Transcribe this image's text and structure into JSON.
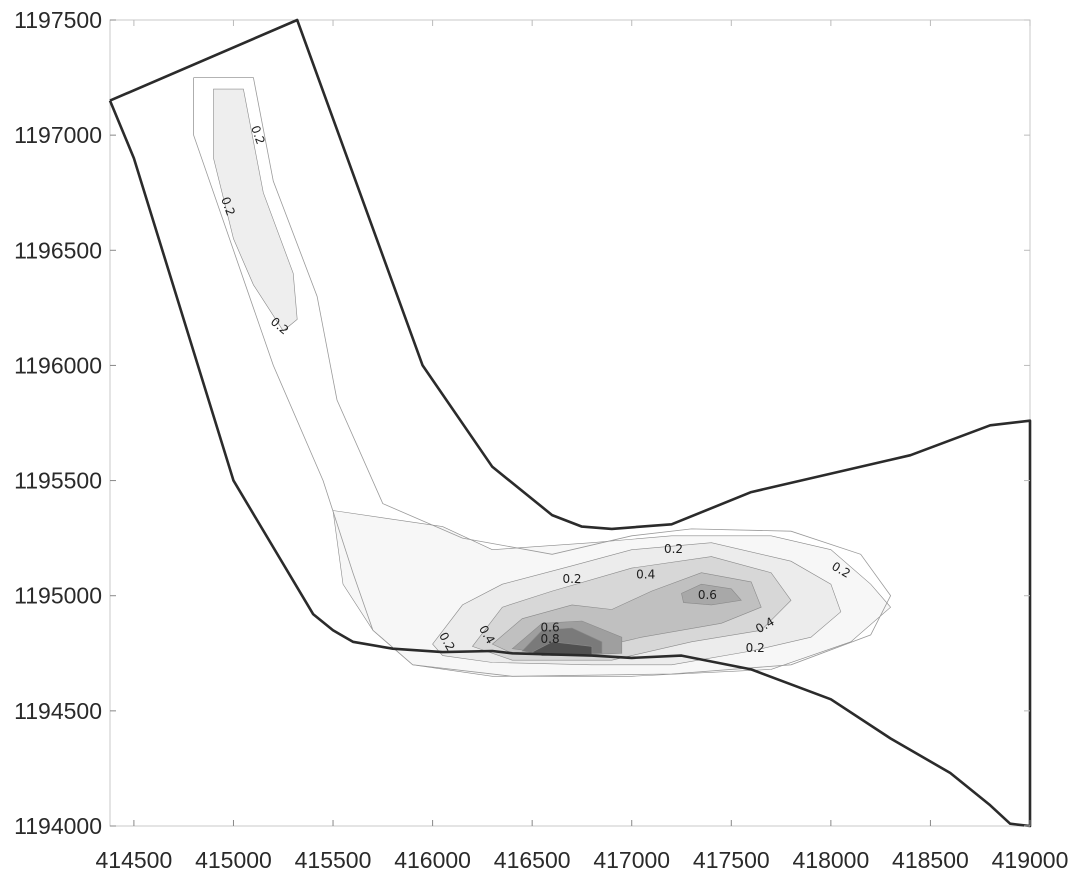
{
  "chart_data": {
    "type": "contour",
    "title": "",
    "xlabel": "",
    "ylabel": "",
    "xlim": [
      414380,
      419000
    ],
    "ylim": [
      1194000,
      1197500
    ],
    "x_ticks": [
      414500,
      415000,
      415500,
      416000,
      416500,
      417000,
      417500,
      418000,
      418500,
      419000
    ],
    "y_ticks": [
      1194000,
      1194500,
      1195000,
      1195500,
      1196000,
      1196500,
      1197000,
      1197500
    ],
    "x_tick_labels": [
      "414500",
      "415000",
      "415500",
      "416000",
      "416500",
      "417000",
      "417500",
      "418000",
      "418500",
      "419000"
    ],
    "y_tick_labels": [
      "1194000",
      "1194500",
      "1195000",
      "1195500",
      "1196000",
      "1196500",
      "1197000",
      "1197500"
    ],
    "grid": false,
    "boundary": [
      [
        414380,
        1197150
      ],
      [
        415320,
        1197500
      ],
      [
        415950,
        1196000
      ],
      [
        416300,
        1195560
      ],
      [
        416600,
        1195350
      ],
      [
        416750,
        1195300
      ],
      [
        416900,
        1195290
      ],
      [
        417200,
        1195310
      ],
      [
        417600,
        1195450
      ],
      [
        418400,
        1195610
      ],
      [
        418800,
        1195740
      ],
      [
        419000,
        1195760
      ],
      [
        419000,
        1194000
      ],
      [
        418900,
        1194010
      ],
      [
        418800,
        1194090
      ],
      [
        418600,
        1194230
      ],
      [
        418300,
        1194380
      ],
      [
        418000,
        1194550
      ],
      [
        417600,
        1194680
      ],
      [
        417250,
        1194740
      ],
      [
        417000,
        1194730
      ],
      [
        416800,
        1194740
      ],
      [
        416400,
        1194750
      ],
      [
        416300,
        1194760
      ],
      [
        416050,
        1194755
      ],
      [
        415800,
        1194770
      ],
      [
        415600,
        1194800
      ],
      [
        415500,
        1194850
      ],
      [
        415400,
        1194920
      ],
      [
        415000,
        1195500
      ],
      [
        414500,
        1196900
      ],
      [
        414380,
        1197150
      ]
    ],
    "contour_levels": [
      0.2,
      0.4,
      0.6,
      0.8
    ],
    "shading": "grayscale, darker = higher value",
    "contours": [
      {
        "level": 0,
        "shade": "#f7f7f7",
        "points": [
          [
            415500,
            1195370
          ],
          [
            416050,
            1195300
          ],
          [
            416300,
            1195200
          ],
          [
            416800,
            1195230
          ],
          [
            417200,
            1195260
          ],
          [
            417700,
            1195260
          ],
          [
            418000,
            1195200
          ],
          [
            418200,
            1195050
          ],
          [
            418300,
            1194950
          ],
          [
            418100,
            1194800
          ],
          [
            417700,
            1194680
          ],
          [
            417000,
            1194650
          ],
          [
            416300,
            1194650
          ],
          [
            415900,
            1194700
          ],
          [
            415700,
            1194850
          ],
          [
            415550,
            1195050
          ]
        ]
      },
      {
        "level": 0.2,
        "shade": "#ececec",
        "points": [
          [
            416000,
            1194790
          ],
          [
            416150,
            1194960
          ],
          [
            416350,
            1195050
          ],
          [
            416700,
            1195130
          ],
          [
            417000,
            1195200
          ],
          [
            417400,
            1195230
          ],
          [
            417800,
            1195150
          ],
          [
            418000,
            1195050
          ],
          [
            418050,
            1194930
          ],
          [
            417900,
            1194820
          ],
          [
            417600,
            1194760
          ],
          [
            417200,
            1194700
          ],
          [
            416800,
            1194700
          ],
          [
            416300,
            1194710
          ],
          [
            416050,
            1194740
          ]
        ]
      },
      {
        "level": 0.3,
        "shade": "#d7d7d7",
        "points": [
          [
            416200,
            1194780
          ],
          [
            416350,
            1194950
          ],
          [
            416600,
            1195020
          ],
          [
            417000,
            1195120
          ],
          [
            417400,
            1195170
          ],
          [
            417700,
            1195100
          ],
          [
            417800,
            1194980
          ],
          [
            417650,
            1194850
          ],
          [
            417300,
            1194800
          ],
          [
            416900,
            1194720
          ],
          [
            416400,
            1194720
          ]
        ]
      },
      {
        "level": 0.4,
        "shade": "#c0c0c0",
        "points": [
          [
            416300,
            1194790
          ],
          [
            416450,
            1194900
          ],
          [
            416700,
            1194960
          ],
          [
            416900,
            1194940
          ],
          [
            417100,
            1195020
          ],
          [
            417350,
            1195100
          ],
          [
            417600,
            1195060
          ],
          [
            417650,
            1194950
          ],
          [
            417450,
            1194880
          ],
          [
            417050,
            1194820
          ],
          [
            416700,
            1194750
          ],
          [
            416400,
            1194750
          ]
        ]
      },
      {
        "level": 0.5,
        "shade": "#9f9f9f",
        "points": [
          [
            416400,
            1194770
          ],
          [
            416550,
            1194880
          ],
          [
            416750,
            1194890
          ],
          [
            416950,
            1194820
          ],
          [
            416950,
            1194750
          ],
          [
            416650,
            1194740
          ]
        ]
      },
      {
        "level": 0.5,
        "shade": "#a8a8a8",
        "points": [
          [
            417250,
            1195010
          ],
          [
            417350,
            1195050
          ],
          [
            417500,
            1195030
          ],
          [
            417550,
            1194980
          ],
          [
            417400,
            1194960
          ],
          [
            417260,
            1194970
          ]
        ]
      },
      {
        "level": 0.6,
        "shade": "#7a7a7a",
        "points": [
          [
            416450,
            1194760
          ],
          [
            416550,
            1194850
          ],
          [
            416700,
            1194860
          ],
          [
            416850,
            1194800
          ],
          [
            416850,
            1194750
          ],
          [
            416600,
            1194740
          ]
        ]
      },
      {
        "level": 0.8,
        "shade": "#505050",
        "points": [
          [
            416500,
            1194755
          ],
          [
            416600,
            1194800
          ],
          [
            416800,
            1194780
          ],
          [
            416800,
            1194745
          ],
          [
            416550,
            1194740
          ]
        ]
      },
      {
        "level": 0.2,
        "shade": "#eeeeee",
        "points": [
          [
            414900,
            1197200
          ],
          [
            415050,
            1197200
          ],
          [
            415150,
            1196750
          ],
          [
            415300,
            1196400
          ],
          [
            415320,
            1196200
          ],
          [
            415250,
            1196150
          ],
          [
            415100,
            1196350
          ],
          [
            415000,
            1196550
          ],
          [
            414900,
            1196900
          ]
        ]
      }
    ],
    "contour_lines": [
      [
        [
          414800,
          1197250
        ],
        [
          415100,
          1197250
        ],
        [
          415200,
          1196800
        ],
        [
          415420,
          1196300
        ],
        [
          415520,
          1195850
        ],
        [
          415750,
          1195400
        ],
        [
          416150,
          1195250
        ],
        [
          416600,
          1195180
        ],
        [
          417000,
          1195260
        ],
        [
          417300,
          1195290
        ],
        [
          417800,
          1195280
        ],
        [
          418150,
          1195180
        ],
        [
          418300,
          1195000
        ],
        [
          418200,
          1194830
        ],
        [
          417800,
          1194700
        ],
        [
          417200,
          1194660
        ],
        [
          416400,
          1194650
        ],
        [
          415900,
          1194700
        ],
        [
          415700,
          1194850
        ],
        [
          415600,
          1195100
        ],
        [
          415450,
          1195500
        ],
        [
          415200,
          1196000
        ],
        [
          415000,
          1196500
        ],
        [
          414800,
          1197000
        ],
        [
          414800,
          1197250
        ]
      ]
    ],
    "contour_labels": [
      {
        "text": "0.2",
        "x": 415120,
        "y": 1197000,
        "angle": 70
      },
      {
        "text": "0.2",
        "x": 414970,
        "y": 1196690,
        "angle": 70
      },
      {
        "text": "0.2",
        "x": 415230,
        "y": 1196170,
        "angle": 40
      },
      {
        "text": "0.2",
        "x": 416700,
        "y": 1195070,
        "angle": 0
      },
      {
        "text": "0.2",
        "x": 417210,
        "y": 1195200,
        "angle": 0
      },
      {
        "text": "0.2",
        "x": 418050,
        "y": 1195110,
        "angle": 30
      },
      {
        "text": "0.2",
        "x": 417620,
        "y": 1194770,
        "angle": 0
      },
      {
        "text": "0.2",
        "x": 416070,
        "y": 1194800,
        "angle": 60
      },
      {
        "text": "0.4",
        "x": 416270,
        "y": 1194830,
        "angle": 60
      },
      {
        "text": "0.4",
        "x": 417070,
        "y": 1195090,
        "angle": 0
      },
      {
        "text": "0.4",
        "x": 417670,
        "y": 1194870,
        "angle": -30
      },
      {
        "text": "0.6",
        "x": 417380,
        "y": 1195000,
        "angle": 0
      },
      {
        "text": "0.6",
        "x": 416590,
        "y": 1194860,
        "angle": 0
      },
      {
        "text": "0.8",
        "x": 416590,
        "y": 1194810,
        "angle": 0
      }
    ]
  }
}
